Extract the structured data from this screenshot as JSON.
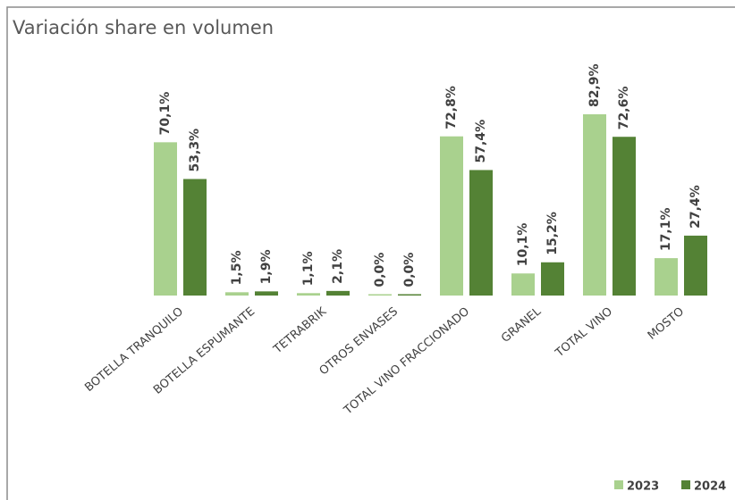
{
  "chart_data": {
    "type": "bar",
    "title": "Variación share en volumen",
    "categories": [
      "BOTELLA TRANQUILO",
      "BOTELLA ESPUMANTE",
      "TETRABRIK",
      "OTROS ENVASES",
      "TOTAL VINO FRACCIONADO",
      "GRANEL",
      "TOTAL VINO",
      "MOSTO"
    ],
    "series": [
      {
        "name": "2023",
        "color": "#a9d18e",
        "values": [
          70.1,
          1.5,
          1.1,
          0.0,
          72.8,
          10.1,
          82.9,
          17.1
        ],
        "value_labels": [
          "70,1%",
          "1,5%",
          "1,1%",
          "0,0%",
          "72,8%",
          "10,1%",
          "82,9%",
          "17,1%"
        ]
      },
      {
        "name": "2024",
        "color": "#548235",
        "values": [
          53.3,
          1.9,
          2.1,
          0.0,
          57.4,
          15.2,
          72.6,
          27.4
        ],
        "value_labels": [
          "53,3%",
          "1,9%",
          "2,1%",
          "0,0%",
          "57,4%",
          "15,2%",
          "72,6%",
          "27,4%"
        ]
      }
    ],
    "legend": "bottom-right"
  }
}
